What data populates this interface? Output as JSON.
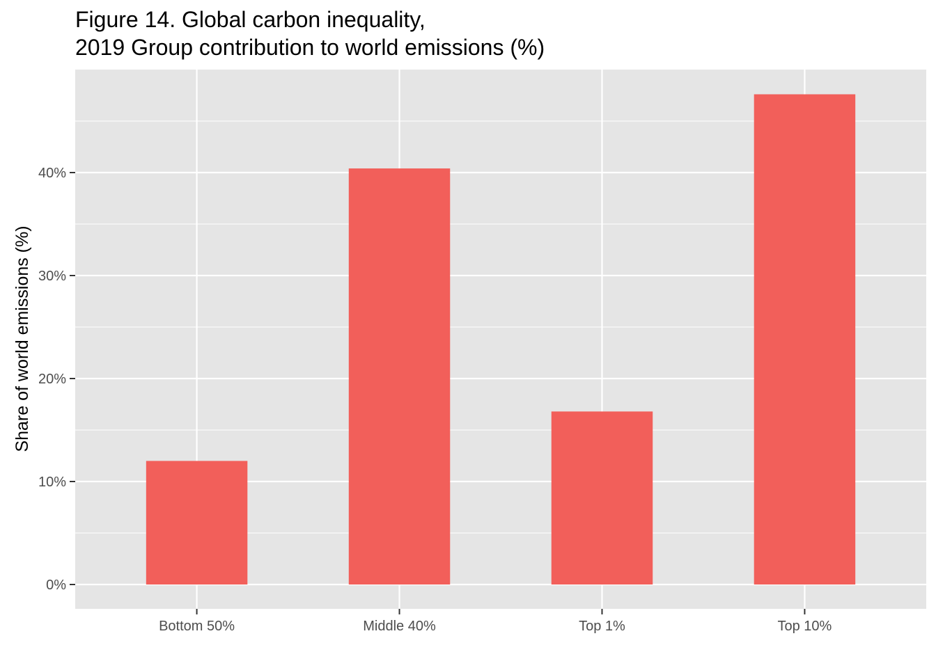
{
  "chart_data": {
    "type": "bar",
    "title_line1": "Figure 14. Global carbon inequality,",
    "title_line2": "2019 Group contribution to world emissions (%)",
    "xlabel": "",
    "ylabel": "Share of world emissions (%)",
    "categories": [
      "Bottom 50%",
      "Middle 40%",
      "Top 1%",
      "Top 10%"
    ],
    "values": [
      12.0,
      40.4,
      16.8,
      47.6
    ],
    "ylim": [
      0,
      50
    ],
    "yticks": [
      0,
      10,
      20,
      30,
      40
    ],
    "ytick_labels": [
      "0%",
      "10%",
      "20%",
      "30%",
      "40%"
    ],
    "bar_color": "#F25F5A",
    "panel_color": "#E5E5E5",
    "grid": true
  }
}
